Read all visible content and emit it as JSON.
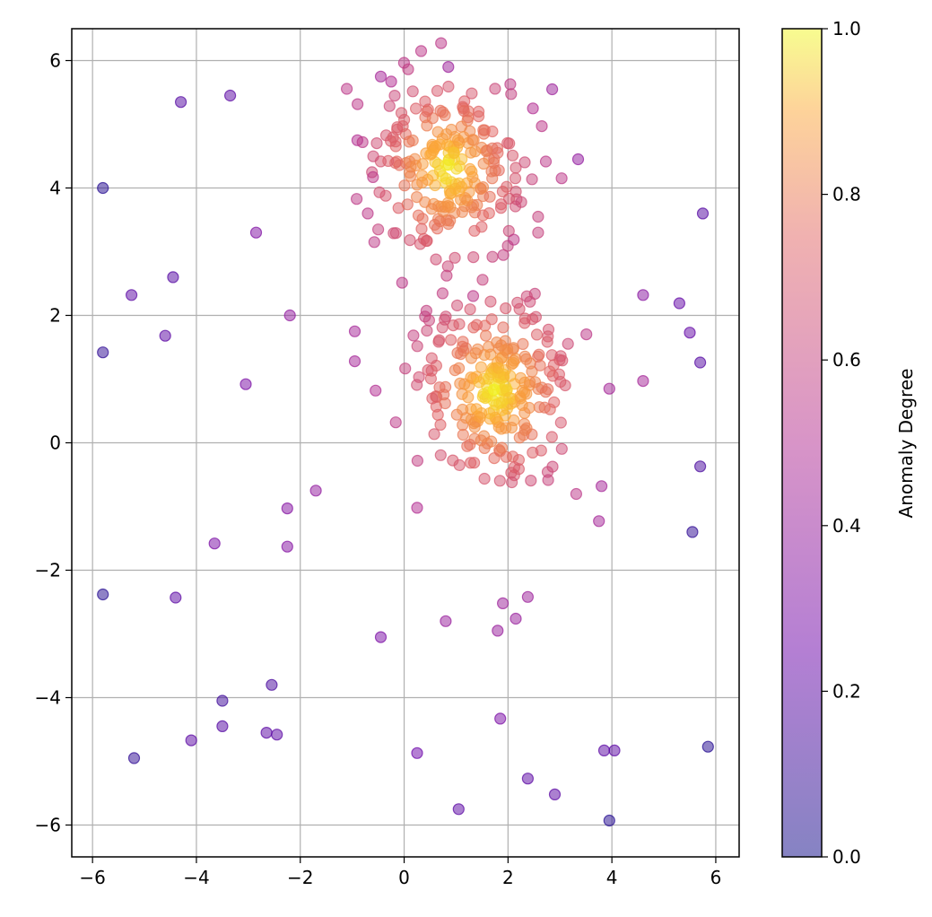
{
  "chart_data": {
    "type": "scatter",
    "title": "",
    "xlabel": "",
    "ylabel": "",
    "xlim": [
      -6.4,
      6.45
    ],
    "ylim": [
      -6.5,
      6.5
    ],
    "x_ticks": [
      -6,
      -4,
      -2,
      0,
      2,
      4,
      6
    ],
    "y_ticks": [
      -6,
      -4,
      -2,
      0,
      2,
      4,
      6
    ],
    "grid": true,
    "legend": "none",
    "marker_alpha": 0.5,
    "colormap": "plasma",
    "colorbar": {
      "label": "Anomaly Degree",
      "range": [
        0,
        1
      ],
      "ticks": [
        0.0,
        0.2,
        0.4,
        0.6,
        0.8,
        1.0
      ],
      "tick_labels": [
        "0.0",
        "0.2",
        "0.4",
        "0.6",
        "0.8",
        "1.0"
      ]
    },
    "outliers": [
      [
        -5.8,
        4.0,
        0.05
      ],
      [
        -4.3,
        5.35,
        0.18
      ],
      [
        -3.35,
        5.45,
        0.2
      ],
      [
        -2.85,
        3.3,
        0.32
      ],
      [
        -5.25,
        2.32,
        0.2
      ],
      [
        -4.45,
        2.6,
        0.18
      ],
      [
        -5.8,
        1.42,
        0.08
      ],
      [
        -4.6,
        1.68,
        0.2
      ],
      [
        -2.2,
        2.0,
        0.38
      ],
      [
        -3.05,
        0.92,
        0.3
      ],
      [
        -5.8,
        -2.38,
        0.05
      ],
      [
        -4.4,
        -2.43,
        0.2
      ],
      [
        -3.65,
        -1.58,
        0.3
      ],
      [
        -2.25,
        -1.03,
        0.33
      ],
      [
        -2.25,
        -1.63,
        0.33
      ],
      [
        -1.7,
        -0.75,
        0.38
      ],
      [
        -3.5,
        -4.05,
        0.12
      ],
      [
        -3.5,
        -4.45,
        0.18
      ],
      [
        -2.55,
        -3.8,
        0.15
      ],
      [
        -2.65,
        -4.55,
        0.2
      ],
      [
        -2.45,
        -4.58,
        0.2
      ],
      [
        -4.1,
        -4.67,
        0.2
      ],
      [
        -5.2,
        -4.95,
        0.08
      ],
      [
        -0.45,
        -3.05,
        0.3
      ],
      [
        0.25,
        -4.87,
        0.25
      ],
      [
        1.05,
        -5.75,
        0.2
      ],
      [
        0.8,
        -2.8,
        0.4
      ],
      [
        1.9,
        -2.52,
        0.42
      ],
      [
        2.38,
        -2.42,
        0.42
      ],
      [
        2.15,
        -2.76,
        0.4
      ],
      [
        1.8,
        -2.95,
        0.4
      ],
      [
        1.85,
        -4.33,
        0.3
      ],
      [
        2.38,
        -5.27,
        0.2
      ],
      [
        2.9,
        -5.52,
        0.2
      ],
      [
        3.85,
        -4.83,
        0.2
      ],
      [
        4.05,
        -4.83,
        0.2
      ],
      [
        3.95,
        -5.93,
        0.05
      ],
      [
        5.85,
        -4.77,
        0.05
      ],
      [
        5.55,
        -1.4,
        0.08
      ],
      [
        5.7,
        -0.37,
        0.15
      ],
      [
        5.7,
        1.26,
        0.18
      ],
      [
        5.5,
        1.73,
        0.22
      ],
      [
        5.3,
        2.19,
        0.22
      ],
      [
        4.6,
        2.32,
        0.35
      ],
      [
        5.75,
        3.6,
        0.18
      ],
      [
        4.6,
        0.97,
        0.45
      ],
      [
        3.95,
        0.85,
        0.45
      ],
      [
        3.8,
        -0.68,
        0.45
      ],
      [
        3.75,
        -1.23,
        0.45
      ],
      [
        3.35,
        4.45,
        0.38
      ],
      [
        2.85,
        5.55,
        0.42
      ],
      [
        0.85,
        5.9,
        0.42
      ],
      [
        -0.95,
        1.75,
        0.45
      ],
      [
        -0.95,
        1.28,
        0.45
      ],
      [
        -0.55,
        0.82,
        0.5
      ],
      [
        0.25,
        -1.02,
        0.5
      ],
      [
        -0.45,
        5.75,
        0.45
      ],
      [
        -0.25,
        5.67,
        0.5
      ],
      [
        -0.9,
        4.75,
        0.5
      ],
      [
        -0.8,
        4.72,
        0.55
      ],
      [
        -0.7,
        3.6,
        0.55
      ],
      [
        -0.6,
        4.17,
        0.55
      ],
      [
        -0.5,
        3.35,
        0.6
      ],
      [
        2.58,
        3.3,
        0.6
      ],
      [
        2.58,
        3.55,
        0.6
      ],
      [
        2.48,
        5.25,
        0.5
      ],
      [
        2.65,
        4.97,
        0.55
      ]
    ],
    "clusters": [
      {
        "name": "",
        "center": [
          0.85,
          4.3
        ],
        "spread": [
          0.7,
          0.7
        ],
        "count": 230,
        "seed": 7
      },
      {
        "name": "",
        "center": [
          1.75,
          0.8
        ],
        "spread": [
          0.75,
          0.75
        ],
        "count": 260,
        "seed": 13
      }
    ]
  }
}
